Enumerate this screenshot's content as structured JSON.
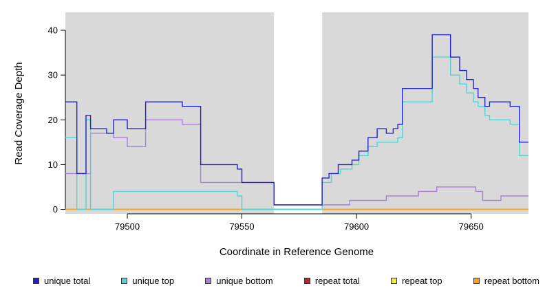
{
  "chart_data": {
    "type": "line",
    "subtype": "step",
    "title": "",
    "xlabel": "Coordinate in Reference Genome",
    "ylabel": "Read Coverage Depth",
    "xlim": [
      79473,
      79675
    ],
    "ylim": [
      0,
      40
    ],
    "xticks": [
      79500,
      79550,
      79600,
      79650
    ],
    "yticks": [
      0,
      10,
      20,
      30,
      40
    ],
    "grid": false,
    "legend_position": "bottom",
    "plot_background": "#d9d9d9",
    "page_background": "#ffffff",
    "gap_region": {
      "start": 79564,
      "end": 79585,
      "color": "#ffffff"
    },
    "draw_order": [
      3,
      4,
      5,
      2,
      1,
      0
    ],
    "series": [
      {
        "name": "unique total",
        "color": "#2222cc",
        "points": [
          [
            79473,
            24
          ],
          [
            79478,
            8
          ],
          [
            79482,
            21
          ],
          [
            79484,
            18
          ],
          [
            79491,
            17
          ],
          [
            79494,
            20
          ],
          [
            79500,
            18
          ],
          [
            79508,
            24
          ],
          [
            79524,
            23
          ],
          [
            79532,
            10
          ],
          [
            79548,
            9
          ],
          [
            79550,
            6
          ],
          [
            79564,
            1
          ],
          [
            79585,
            7
          ],
          [
            79588,
            8
          ],
          [
            79592,
            10
          ],
          [
            79598,
            11
          ],
          [
            79601,
            13
          ],
          [
            79605,
            16
          ],
          [
            79609,
            18
          ],
          [
            79613,
            17
          ],
          [
            79616,
            18
          ],
          [
            79618,
            19
          ],
          [
            79620,
            27
          ],
          [
            79633,
            39
          ],
          [
            79641,
            34
          ],
          [
            79645,
            31
          ],
          [
            79648,
            29
          ],
          [
            79651,
            27
          ],
          [
            79653,
            25
          ],
          [
            79656,
            23
          ],
          [
            79658,
            24
          ],
          [
            79667,
            23
          ],
          [
            79671,
            15
          ]
        ]
      },
      {
        "name": "unique top",
        "color": "#4fd6d2",
        "points": [
          [
            79473,
            16
          ],
          [
            79478,
            0
          ],
          [
            79482,
            20
          ],
          [
            79484,
            0
          ],
          [
            79494,
            4
          ],
          [
            79548,
            3
          ],
          [
            79550,
            0
          ],
          [
            79585,
            6
          ],
          [
            79589,
            8
          ],
          [
            79593,
            9
          ],
          [
            79598,
            10
          ],
          [
            79601,
            12
          ],
          [
            79605,
            14
          ],
          [
            79609,
            15
          ],
          [
            79618,
            16
          ],
          [
            79620,
            24
          ],
          [
            79633,
            34
          ],
          [
            79641,
            30
          ],
          [
            79645,
            28
          ],
          [
            79648,
            26
          ],
          [
            79651,
            24
          ],
          [
            79653,
            23
          ],
          [
            79656,
            21
          ],
          [
            79658,
            20
          ],
          [
            79667,
            19
          ],
          [
            79671,
            12
          ]
        ]
      },
      {
        "name": "unique bottom",
        "color": "#a97fd8",
        "points": [
          [
            79473,
            8
          ],
          [
            79484,
            17
          ],
          [
            79494,
            16
          ],
          [
            79500,
            14
          ],
          [
            79508,
            20
          ],
          [
            79524,
            19
          ],
          [
            79532,
            6
          ],
          [
            79564,
            1
          ],
          [
            79597,
            2
          ],
          [
            79613,
            3
          ],
          [
            79627,
            4
          ],
          [
            79635,
            5
          ],
          [
            79652,
            4
          ],
          [
            79655,
            2
          ],
          [
            79663,
            3
          ]
        ]
      },
      {
        "name": "repeat total",
        "color": "#c22222",
        "points": [
          [
            79473,
            0
          ]
        ]
      },
      {
        "name": "repeat top",
        "color": "#f5ef2a",
        "points": [
          [
            79473,
            0
          ]
        ]
      },
      {
        "name": "repeat bottom",
        "color": "#ff9f1a",
        "points": [
          [
            79473,
            0
          ]
        ]
      }
    ]
  }
}
